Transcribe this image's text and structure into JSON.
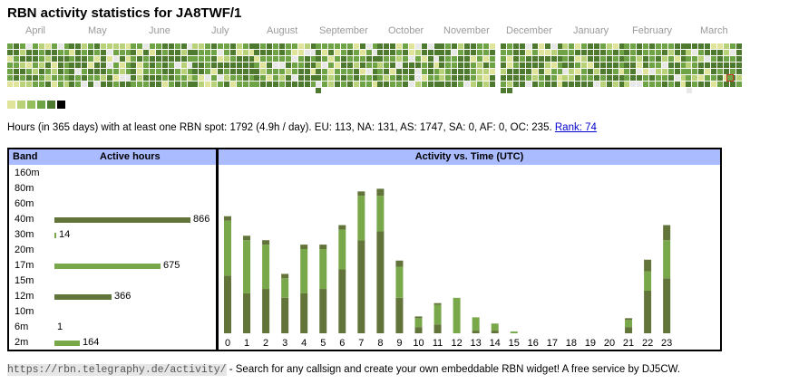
{
  "page": {
    "title": "RBN activity statistics for JA8TWF/1"
  },
  "months": [
    "April",
    "May",
    "June",
    "July",
    "August",
    "September",
    "October",
    "November",
    "December",
    "January",
    "February",
    "March"
  ],
  "colors": {
    "empty": "#e8e8e8",
    "levels": [
      "#dfe49a",
      "#b9d27a",
      "#93c05c",
      "#6ea446",
      "#4e7a30",
      "#000000"
    ],
    "bar_dark": "#63743a",
    "bar_light": "#79a84a",
    "header": "#aabbff",
    "highlight": "#cc3322",
    "link": "#0000cc"
  },
  "summary": {
    "text": "Hours (in 365 days) with at least one RBN spot: 1792 (4.9h / day). EU: 113, NA: 131, AS: 1747, SA: 0, AF: 0, OC: 235.",
    "rank_label": "Rank: 74"
  },
  "band_table": {
    "band_header": "Band",
    "hours_header": "Active hours",
    "max": 866,
    "rows": [
      {
        "band": "160m",
        "hours": 0,
        "value_label": ""
      },
      {
        "band": "80m",
        "hours": 0,
        "value_label": ""
      },
      {
        "band": "60m",
        "hours": 0,
        "value_label": ""
      },
      {
        "band": "40m",
        "hours": 866,
        "value_label": "866"
      },
      {
        "band": "30m",
        "hours": 14,
        "value_label": "14"
      },
      {
        "band": "20m",
        "hours": 0,
        "value_label": ""
      },
      {
        "band": "17m",
        "hours": 675,
        "value_label": "675"
      },
      {
        "band": "15m",
        "hours": 0,
        "value_label": ""
      },
      {
        "band": "12m",
        "hours": 366,
        "value_label": "366"
      },
      {
        "band": "10m",
        "hours": 0,
        "value_label": ""
      },
      {
        "band": "6m",
        "hours": 1,
        "value_label": "1"
      },
      {
        "band": "2m",
        "hours": 164,
        "value_label": "164"
      }
    ]
  },
  "chart_data": {
    "type": "bar",
    "title": "Activity vs. Time (UTC)",
    "xlabel": "",
    "ylabel": "",
    "categories": [
      "0",
      "1",
      "2",
      "3",
      "4",
      "5",
      "6",
      "7",
      "8",
      "9",
      "10",
      "11",
      "12",
      "13",
      "14",
      "15",
      "16",
      "17",
      "18",
      "19",
      "20",
      "21",
      "22",
      "23"
    ],
    "ylim": [
      0,
      190
    ],
    "series": [
      {
        "name": "segment-1",
        "color": "dark",
        "values": [
          65,
          45,
          50,
          40,
          45,
          50,
          72,
          105,
          115,
          40,
          7,
          10,
          0,
          3,
          3,
          0,
          0,
          0,
          0,
          0,
          0,
          7,
          48,
          62
        ]
      },
      {
        "name": "segment-2",
        "color": "light",
        "values": [
          62,
          60,
          50,
          22,
          50,
          45,
          45,
          50,
          40,
          35,
          10,
          22,
          40,
          15,
          8,
          2,
          0,
          0,
          0,
          0,
          0,
          8,
          22,
          43
        ]
      },
      {
        "name": "segment-3",
        "color": "dark",
        "values": [
          5,
          5,
          5,
          5,
          5,
          5,
          5,
          5,
          8,
          7,
          2,
          2,
          0,
          0,
          0,
          0,
          0,
          0,
          0,
          0,
          0,
          2,
          13,
          17
        ]
      }
    ]
  },
  "footer": {
    "url": "https://rbn.telegraphy.de/activity/",
    "text": " - Search for any callsign and create your own embeddable RBN widget! A free service by DJ5CW."
  }
}
